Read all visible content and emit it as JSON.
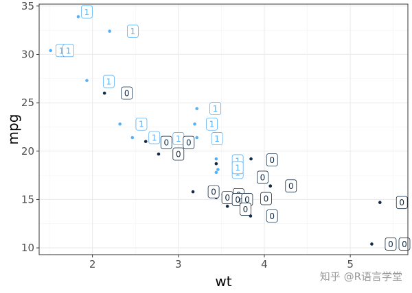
{
  "chart_data": {
    "type": "scatter",
    "xlabel": "wt",
    "ylabel": "mpg",
    "xlim": [
      1.38,
      5.67
    ],
    "ylim": [
      9.3,
      35.2
    ],
    "xticks": [
      2,
      3,
      4,
      5
    ],
    "yticks": [
      10,
      15,
      20,
      25,
      30,
      35
    ],
    "grid": true,
    "legend": "none",
    "colors": {
      "am1": "#56B1F7",
      "am0": "#132B43"
    },
    "series": [
      {
        "label": "1",
        "color": "#56B1F7",
        "points": [
          {
            "x": 1.835,
            "y": 33.9,
            "lx": 1.935,
            "ly": 34.4
          },
          {
            "x": 2.2,
            "y": 32.4,
            "lx": 2.47,
            "ly": 32.4
          },
          {
            "x": 1.513,
            "y": 30.4,
            "lx": 1.64,
            "ly": 30.4
          },
          {
            "x": 1.615,
            "y": 30.4,
            "lx": 1.72,
            "ly": 30.4
          },
          {
            "x": 1.935,
            "y": 27.3,
            "lx": 2.19,
            "ly": 27.2
          },
          {
            "x": 2.32,
            "y": 22.8,
            "lx": 2.57,
            "ly": 22.8
          },
          {
            "x": 3.19,
            "y": 22.8,
            "lx": 3.39,
            "ly": 22.8
          },
          {
            "x": 3.215,
            "y": 24.4,
            "lx": 3.43,
            "ly": 24.4
          },
          {
            "x": 2.465,
            "y": 21.4,
            "lx": 2.72,
            "ly": 21.4
          },
          {
            "x": 3.44,
            "y": 19.2,
            "lx": 3.69,
            "ly": 19.0
          },
          {
            "x": 3.44,
            "y": 17.8,
            "lx": 3.69,
            "ly": 17.8
          },
          {
            "x": 3.46,
            "y": 18.1,
            "lx": 3.69,
            "ly": 18.3
          },
          {
            "x": 3.215,
            "y": 21.4,
            "lx": 3.45,
            "ly": 21.3
          },
          {
            "x": 2.875,
            "y": 21.4,
            "lx": 3.0,
            "ly": 21.3
          }
        ]
      },
      {
        "label": "0",
        "color": "#132B43",
        "points": [
          {
            "x": 2.14,
            "y": 26.0,
            "lx": 2.4,
            "ly": 26.0
          },
          {
            "x": 2.62,
            "y": 21.0,
            "lx": 2.86,
            "ly": 20.9
          },
          {
            "x": 2.77,
            "y": 19.7,
            "lx": 3.0,
            "ly": 19.7
          },
          {
            "x": 3.44,
            "y": 18.7,
            "lx": 3.12,
            "ly": 20.9
          },
          {
            "x": 3.17,
            "y": 15.8,
            "lx": 3.41,
            "ly": 15.8
          },
          {
            "x": 3.44,
            "y": 15.2,
            "lx": 3.57,
            "ly": 15.2
          },
          {
            "x": 3.52,
            "y": 15.5,
            "lx": 3.7,
            "ly": 15.5
          },
          {
            "x": 3.57,
            "y": 14.3,
            "lx": 3.69,
            "ly": 15.0
          },
          {
            "x": 3.57,
            "y": 15.0,
            "lx": 3.78,
            "ly": 14.5
          },
          {
            "x": 3.73,
            "y": 15.2,
            "lx": 3.8,
            "ly": 15.0
          },
          {
            "x": 3.78,
            "y": 15.2,
            "lx": 3.78,
            "ly": 14.0
          },
          {
            "x": 3.84,
            "y": 13.3,
            "lx": 4.02,
            "ly": 15.1
          },
          {
            "x": 3.845,
            "y": 19.2,
            "lx": 4.09,
            "ly": 19.1
          },
          {
            "x": 4.07,
            "y": 16.4,
            "lx": 3.98,
            "ly": 17.3
          },
          {
            "x": 3.73,
            "y": 17.3,
            "lx": 4.31,
            "ly": 16.4
          },
          {
            "x": 4.07,
            "y": 16.4,
            "lx": 4.09,
            "ly": 13.3
          },
          {
            "x": 5.25,
            "y": 10.4,
            "lx": 5.47,
            "ly": 10.4
          },
          {
            "x": 5.424,
            "y": 10.4,
            "lx": 5.63,
            "ly": 10.4
          },
          {
            "x": 5.345,
            "y": 14.7,
            "lx": 5.6,
            "ly": 14.7
          }
        ]
      }
    ]
  },
  "watermark": "知乎 @R语言学堂"
}
